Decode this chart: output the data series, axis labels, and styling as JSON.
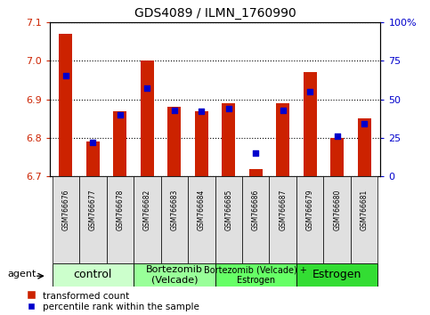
{
  "title": "GDS4089 / ILMN_1760990",
  "samples": [
    "GSM766676",
    "GSM766677",
    "GSM766678",
    "GSM766682",
    "GSM766683",
    "GSM766684",
    "GSM766685",
    "GSM766686",
    "GSM766687",
    "GSM766679",
    "GSM766680",
    "GSM766681"
  ],
  "red_values": [
    7.07,
    6.79,
    6.87,
    7.0,
    6.88,
    6.87,
    6.89,
    6.72,
    6.89,
    6.97,
    6.8,
    6.85
  ],
  "blue_values": [
    65,
    22,
    40,
    57,
    43,
    42,
    44,
    15,
    43,
    55,
    26,
    34
  ],
  "ylim_left": [
    6.7,
    7.1
  ],
  "ylim_right": [
    0,
    100
  ],
  "yticks_left": [
    6.7,
    6.8,
    6.9,
    7.0,
    7.1
  ],
  "yticks_right": [
    0,
    25,
    50,
    75,
    100
  ],
  "ytick_labels_right": [
    "0",
    "25",
    "50",
    "75",
    "100%"
  ],
  "groups": [
    {
      "label": "control",
      "start": 0,
      "end": 3,
      "color": "#ccffcc",
      "fontsize": 9
    },
    {
      "label": "Bortezomib\n(Velcade)",
      "start": 3,
      "end": 6,
      "color": "#99ff99",
      "fontsize": 8
    },
    {
      "label": "Bortezomib (Velcade) +\nEstrogen",
      "start": 6,
      "end": 9,
      "color": "#66ff66",
      "fontsize": 7
    },
    {
      "label": "Estrogen",
      "start": 9,
      "end": 12,
      "color": "#33dd33",
      "fontsize": 9
    }
  ],
  "bar_color": "#cc2200",
  "dot_color": "#0000cc",
  "bar_width": 0.5,
  "legend_items": [
    "transformed count",
    "percentile rank within the sample"
  ],
  "agent_label": "agent",
  "left_tick_color": "#cc2200",
  "right_tick_color": "#0000cc"
}
